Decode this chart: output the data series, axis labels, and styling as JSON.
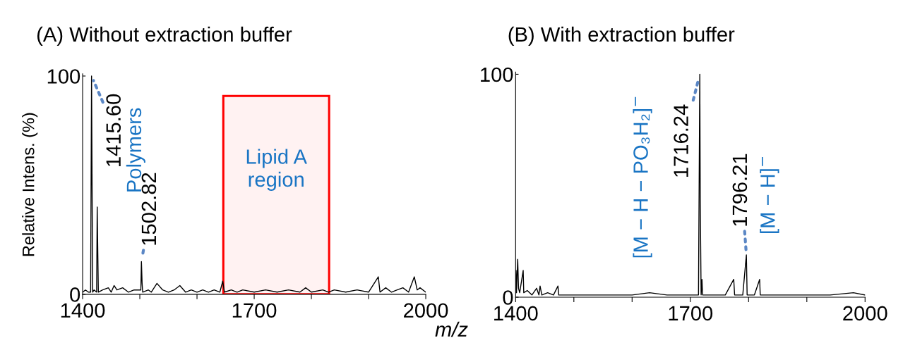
{
  "chart_data": [
    {
      "type": "line",
      "title": "(A) Without extraction buffer",
      "xlabel": "m/z",
      "ylabel": "Relative Intens. (%)",
      "xlim": [
        1400,
        2000
      ],
      "xticks": [
        1400,
        {
          "value": 1500,
          "label": null
        },
        {
          "value": 1600,
          "label": null
        },
        1700,
        {
          "value": 1800,
          "label": null
        },
        {
          "value": 1900,
          "label": null
        },
        2000
      ],
      "ylim": [
        0,
        101
      ],
      "yticks": [
        0,
        100
      ],
      "grid": false,
      "legend": false,
      "marker": "none",
      "line_style": "solid",
      "series": [
        {
          "color": "#000000",
          "x": [
            1400,
            1405,
            1410,
            1414,
            1415.6,
            1416.4,
            1417.5,
            1420,
            1424.5,
            1425.5,
            1426.5,
            1427.5,
            1435,
            1445,
            1450,
            1455,
            1460,
            1470,
            1480,
            1490,
            1501.8,
            1502.8,
            1504,
            1505,
            1515,
            1520,
            1530,
            1540,
            1550,
            1560,
            1570,
            1580,
            1590,
            1600,
            1610,
            1620,
            1630,
            1640,
            1645,
            1648,
            1660,
            1670,
            1680,
            1700,
            1720,
            1740,
            1760,
            1780,
            1790,
            1800,
            1820,
            1830,
            1840,
            1860,
            1880,
            1900,
            1917,
            1920,
            1930,
            1940,
            1950,
            1960,
            1970,
            1980,
            1985,
            1990,
            2000
          ],
          "values": [
            1,
            2,
            1,
            1,
            100,
            57,
            1,
            2,
            1,
            40,
            20,
            1,
            2,
            3,
            1,
            4,
            2,
            3,
            1,
            2,
            2,
            15,
            5,
            1,
            2,
            1,
            5,
            2,
            1,
            2,
            4,
            1,
            2,
            1,
            2,
            1,
            2,
            1,
            6,
            1,
            2,
            1,
            2,
            1,
            2,
            1,
            2,
            1,
            3,
            1,
            2,
            1,
            2,
            1,
            2,
            1,
            8,
            1,
            3,
            1,
            2,
            3,
            1,
            8,
            2,
            3,
            1
          ]
        }
      ],
      "bands": [
        {
          "axis": "x",
          "from": 1646,
          "to": 1831,
          "label": "Lipid A\nregion",
          "color": "#ff0000"
        }
      ],
      "annotations": [
        {
          "text": "1415.60",
          "x": 1415.6,
          "y": 100
        },
        {
          "text": "Polymers",
          "x": 1415.6,
          "y": 100
        },
        {
          "text": "1502.82",
          "x": 1502.82,
          "y": 15
        }
      ]
    },
    {
      "type": "line",
      "title": "(B) With extraction buffer",
      "xlim": [
        1400,
        2000
      ],
      "xticks": [
        1400,
        {
          "value": 1500,
          "label": null
        },
        {
          "value": 1600,
          "label": null
        },
        1700,
        {
          "value": 1800,
          "label": null
        },
        {
          "value": 1900,
          "label": null
        },
        2000
      ],
      "ylim": [
        0,
        101
      ],
      "yticks": [
        0,
        100
      ],
      "grid": false,
      "legend": false,
      "marker": "none",
      "line_style": "solid",
      "series": [
        {
          "color": "#000000",
          "x": [
            1400,
            1400.8,
            1401.5,
            1403.6,
            1405,
            1407,
            1413,
            1414,
            1420,
            1428,
            1436,
            1440,
            1442,
            1445,
            1455,
            1465,
            1472.7,
            1474,
            1490,
            1520,
            1560,
            1600,
            1630,
            1660,
            1690,
            1714,
            1716.24,
            1717,
            1718.5,
            1720,
            1721,
            1740,
            1760,
            1774.5,
            1776,
            1790,
            1796.21,
            1797.5,
            1810,
            1819,
            1820,
            1840,
            1870,
            1880,
            1920,
            1940,
            1980,
            2000
          ],
          "values": [
            2,
            12,
            2,
            17,
            4,
            2,
            12,
            2,
            3,
            1,
            4,
            1,
            5,
            1,
            2,
            1,
            5,
            1,
            1,
            1,
            1,
            1,
            2,
            1,
            1,
            1,
            100,
            44,
            1,
            8,
            1,
            1,
            1,
            8,
            1,
            1,
            19,
            1,
            1,
            8,
            1,
            1,
            1,
            1,
            1,
            1,
            2,
            1
          ]
        }
      ],
      "annotations": [
        {
          "text": "1716.24",
          "x": 1716.24,
          "y": 100
        },
        {
          "text": "[M − H − PO₃H₂]$^{−}$",
          "x": 1716.24,
          "y": 100
        },
        {
          "text": "1796.21",
          "x": 1796.21,
          "y": 19
        },
        {
          "text": "[M − H]$^{−}$",
          "x": 1796.21,
          "y": 19
        }
      ]
    }
  ]
}
